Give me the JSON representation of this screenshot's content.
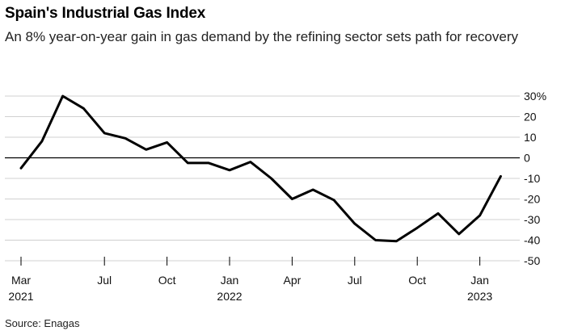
{
  "header": {
    "title": "Spain's Industrial Gas Index",
    "subtitle": "An 8% year-on-year gain in gas demand by the refining sector sets path for recovery"
  },
  "footer": {
    "source": "Source: Enagas"
  },
  "colors": {
    "line": "#000000",
    "grid": "#d0d0d0",
    "zero_line": "#000000"
  },
  "chart_data": {
    "type": "line",
    "title": "Spain's Industrial Gas Index",
    "subtitle": "An 8% year-on-year gain in gas demand by the refining sector sets path for recovery",
    "xlabel": "",
    "ylabel": "",
    "y_unit": "%",
    "ylim": [
      -50,
      30
    ],
    "yticks": [
      30,
      20,
      10,
      0,
      -10,
      -20,
      -30,
      -40,
      -50
    ],
    "ytick_labels": [
      "30%",
      "20",
      "10",
      "0",
      "-10",
      "-20",
      "-30",
      "-40",
      "-50"
    ],
    "y_axis_position": "right",
    "grid": true,
    "xticks": [
      {
        "date": "2021-03",
        "line1": "Mar",
        "line2": "2021"
      },
      {
        "date": "2021-07",
        "line1": "Jul",
        "line2": ""
      },
      {
        "date": "2021-10",
        "line1": "Oct",
        "line2": ""
      },
      {
        "date": "2022-01",
        "line1": "Jan",
        "line2": "2022"
      },
      {
        "date": "2022-04",
        "line1": "Apr",
        "line2": ""
      },
      {
        "date": "2022-07",
        "line1": "Jul",
        "line2": ""
      },
      {
        "date": "2022-10",
        "line1": "Oct",
        "line2": ""
      },
      {
        "date": "2023-01",
        "line1": "Jan",
        "line2": "2023"
      }
    ],
    "series": [
      {
        "x": [
          "2021-03",
          "2021-04",
          "2021-05",
          "2021-06",
          "2021-07",
          "2021-08",
          "2021-09",
          "2021-10",
          "2021-11",
          "2021-12",
          "2022-01",
          "2022-02",
          "2022-03",
          "2022-04",
          "2022-05",
          "2022-06",
          "2022-07",
          "2022-08",
          "2022-09",
          "2022-10",
          "2022-11",
          "2022-12",
          "2023-01",
          "2023-02"
        ],
        "values": [
          -5,
          8,
          30,
          24,
          12,
          9.5,
          4,
          7.5,
          -2.5,
          -2.5,
          -6,
          -2,
          -10,
          -20,
          -15.5,
          -20.5,
          -32,
          -40,
          -40.5,
          -34,
          -27,
          -37,
          -28,
          -9
        ]
      }
    ]
  }
}
